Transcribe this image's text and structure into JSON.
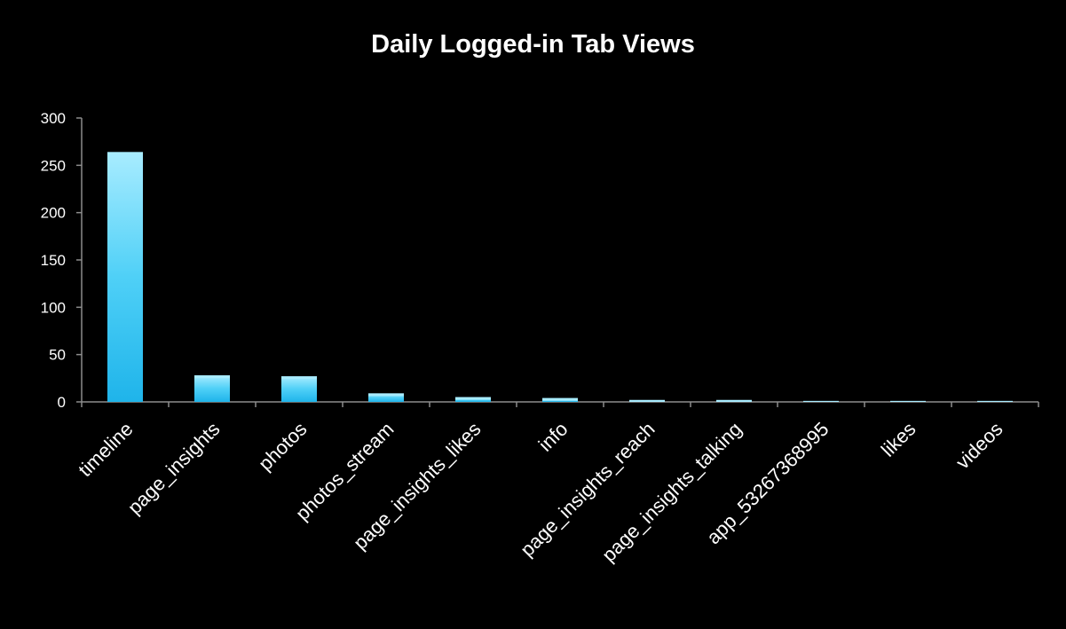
{
  "chart_data": {
    "type": "bar",
    "title": "Daily Logged-in Tab Views",
    "xlabel": "",
    "ylabel": "",
    "categories": [
      "timeline",
      "page_insights",
      "photos",
      "photos_stream",
      "page_insights_likes",
      "info",
      "page_insights_reach",
      "page_insights_talking",
      "app_53267368995",
      "likes",
      "videos"
    ],
    "values": [
      264,
      28,
      27,
      9,
      5,
      4,
      2,
      2,
      1,
      1,
      1
    ],
    "ylim": [
      0,
      300
    ],
    "yticks": [
      "0",
      "50",
      "100",
      "150",
      "200",
      "250",
      "300"
    ],
    "grid": false,
    "legend": "none",
    "colors": {
      "background": "#000000",
      "text": "#ffffff",
      "axis": "#8c8c8c",
      "bar_light": "#a8ecff",
      "bar_mid": "#4fd0f7",
      "bar_dark": "#1fb4ea"
    }
  }
}
